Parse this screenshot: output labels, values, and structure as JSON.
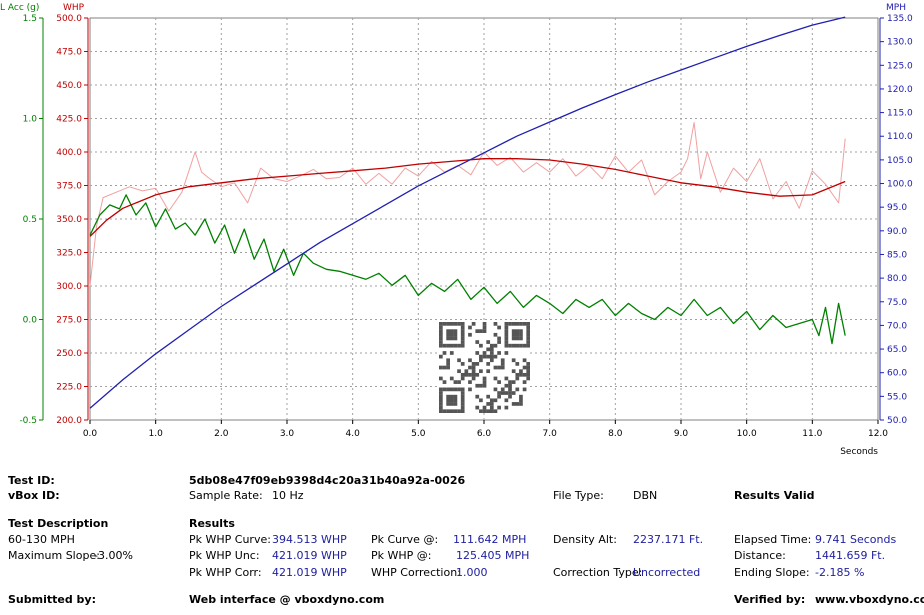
{
  "chart_data": {
    "type": "line",
    "xlabel": "Seconds",
    "xlim": [
      0,
      12
    ],
    "x_ticks": [
      "0.0",
      "1.0",
      "2.0",
      "3.0",
      "4.0",
      "5.0",
      "6.0",
      "7.0",
      "8.0",
      "9.0",
      "10.0",
      "11.0",
      "12.0"
    ],
    "axes": {
      "lacc": {
        "label": "L Acc (g)",
        "ylim": [
          -0.5,
          1.5
        ],
        "color": "#008000",
        "ticks": [
          "-0.5",
          "0.0",
          "0.5",
          "1.0",
          "1.5"
        ]
      },
      "whp": {
        "label": "WHP",
        "ylim": [
          200,
          500
        ],
        "color": "#c00000",
        "ticks": [
          "200.0",
          "225.0",
          "250.0",
          "275.0",
          "300.0",
          "325.0",
          "350.0",
          "375.0",
          "400.0",
          "425.0",
          "450.0",
          "475.0",
          "500.0"
        ]
      },
      "mph": {
        "label": "MPH",
        "ylim": [
          50,
          135
        ],
        "color": "#2020b0",
        "ticks": [
          "50.0",
          "55.0",
          "60.0",
          "65.0",
          "70.0",
          "75.0",
          "80.0",
          "85.0",
          "90.0",
          "95.0",
          "100.0",
          "105.0",
          "110.0",
          "115.0",
          "120.0",
          "125.0",
          "130.0",
          "135.0"
        ]
      }
    },
    "series": [
      {
        "axis": "mph",
        "color": "#2020b0",
        "x": [
          0,
          0.5,
          1,
          1.5,
          2,
          2.5,
          3,
          3.5,
          4,
          4.5,
          5,
          5.5,
          6,
          6.5,
          7,
          7.5,
          8,
          8.5,
          9,
          9.5,
          10,
          10.5,
          11,
          11.5
        ],
        "values": [
          52.5,
          58.5,
          64.0,
          69.0,
          74.0,
          78.5,
          83.0,
          87.5,
          91.5,
          95.5,
          99.5,
          103.0,
          106.5,
          110.0,
          113.0,
          116.0,
          118.8,
          121.5,
          124.0,
          126.5,
          129.0,
          131.3,
          133.5,
          135.2
        ]
      },
      {
        "axis": "whp",
        "color": "#c00000",
        "x": [
          0,
          0.25,
          0.5,
          1,
          1.5,
          2,
          2.5,
          3,
          3.5,
          4,
          4.5,
          5,
          5.5,
          6,
          6.5,
          7,
          7.5,
          8,
          8.5,
          9,
          9.5,
          10,
          10.5,
          11,
          11.5
        ],
        "values": [
          337,
          349,
          358,
          368,
          374,
          377,
          380,
          382,
          384,
          386,
          388,
          391,
          393,
          395,
          395,
          394,
          391,
          387,
          382,
          377,
          374,
          370,
          367,
          368,
          378
        ]
      },
      {
        "axis": "whp",
        "color": "#f0a0a0",
        "x": [
          0,
          0.1,
          0.2,
          0.4,
          0.6,
          0.8,
          1.0,
          1.2,
          1.4,
          1.6,
          1.7,
          1.8,
          2.0,
          2.2,
          2.4,
          2.6,
          2.8,
          3.0,
          3.2,
          3.4,
          3.6,
          3.8,
          4.0,
          4.2,
          4.4,
          4.6,
          4.8,
          5.0,
          5.2,
          5.4,
          5.6,
          5.8,
          6.0,
          6.2,
          6.4,
          6.6,
          6.8,
          7.0,
          7.2,
          7.4,
          7.6,
          7.8,
          8.0,
          8.2,
          8.4,
          8.6,
          8.8,
          9.0,
          9.1,
          9.2,
          9.3,
          9.4,
          9.6,
          9.8,
          10.0,
          10.2,
          10.4,
          10.6,
          10.8,
          11.0,
          11.2,
          11.4,
          11.5
        ],
        "values": [
          300,
          345,
          366,
          370,
          374,
          371,
          373,
          356,
          370,
          400,
          385,
          381,
          374,
          377,
          362,
          388,
          380,
          378,
          382,
          387,
          380,
          381,
          388,
          376,
          384,
          376,
          388,
          382,
          393,
          385,
          390,
          383,
          400,
          390,
          396,
          385,
          392,
          385,
          395,
          382,
          390,
          380,
          397,
          385,
          394,
          368,
          378,
          385,
          395,
          422,
          380,
          400,
          370,
          388,
          378,
          395,
          365,
          378,
          358,
          386,
          376,
          362,
          410
        ]
      },
      {
        "axis": "lacc",
        "color": "#008000",
        "x": [
          0,
          0.15,
          0.3,
          0.45,
          0.55,
          0.7,
          0.85,
          1.0,
          1.15,
          1.3,
          1.45,
          1.6,
          1.75,
          1.9,
          2.05,
          2.2,
          2.35,
          2.5,
          2.65,
          2.8,
          2.95,
          3.1,
          3.25,
          3.4,
          3.6,
          3.8,
          4.0,
          4.2,
          4.4,
          4.6,
          4.8,
          5.0,
          5.2,
          5.4,
          5.6,
          5.8,
          6.0,
          6.2,
          6.4,
          6.6,
          6.8,
          7.0,
          7.2,
          7.4,
          7.6,
          7.8,
          8.0,
          8.2,
          8.4,
          8.6,
          8.8,
          9.0,
          9.2,
          9.4,
          9.6,
          9.8,
          10.0,
          10.2,
          10.4,
          10.6,
          10.8,
          11.0,
          11.1,
          11.2,
          11.3,
          11.4,
          11.5
        ],
        "values": [
          0.42,
          0.52,
          0.57,
          0.55,
          0.62,
          0.52,
          0.58,
          0.46,
          0.55,
          0.45,
          0.48,
          0.42,
          0.5,
          0.38,
          0.47,
          0.33,
          0.45,
          0.3,
          0.4,
          0.24,
          0.35,
          0.22,
          0.33,
          0.28,
          0.25,
          0.24,
          0.22,
          0.2,
          0.23,
          0.17,
          0.22,
          0.12,
          0.18,
          0.14,
          0.2,
          0.1,
          0.16,
          0.08,
          0.14,
          0.06,
          0.12,
          0.08,
          0.03,
          0.1,
          0.06,
          0.1,
          0.02,
          0.08,
          0.03,
          0.0,
          0.06,
          0.02,
          0.1,
          0.02,
          0.06,
          -0.02,
          0.04,
          -0.05,
          0.02,
          -0.04,
          -0.02,
          0.0,
          -0.08,
          0.06,
          -0.12,
          0.08,
          -0.08
        ]
      }
    ]
  },
  "info": {
    "test_id_label": "Test ID:",
    "test_id_value": "5db08e47f09eb9398d4c20a31b40a92a-0026",
    "vbox_id_label": "vBox ID:",
    "sample_rate_label": "Sample Rate:",
    "sample_rate_value": "10 Hz",
    "file_type_label": "File Type:",
    "file_type_value": "DBN",
    "results_valid": "Results Valid",
    "test_desc_label": "Test Description",
    "test_desc_value": "60-130 MPH",
    "max_slope_label": "Maximum Slope:",
    "max_slope_value": "-3.00%",
    "results_label": "Results",
    "pk_whp_curve_label": "Pk WHP Curve:",
    "pk_whp_curve_value": "394.513 WHP",
    "pk_whp_unc_label": "Pk WHP Unc:",
    "pk_whp_unc_value": "421.019 WHP",
    "pk_whp_corr_label": "Pk WHP Corr:",
    "pk_whp_corr_value": "421.019 WHP",
    "pk_curve_at_label": "Pk Curve @:",
    "pk_curve_at_value": "111.642 MPH",
    "pk_whp_at_label": "Pk WHP @:",
    "pk_whp_at_value": "125.405 MPH",
    "whp_corr_label": "WHP Correction:",
    "whp_corr_value": "1.000",
    "density_alt_label": "Density Alt:",
    "density_alt_value": "2237.171 Ft.",
    "corr_type_label": "Correction Type:",
    "corr_type_value": "Uncorrected",
    "elapsed_label": "Elapsed Time:",
    "elapsed_value": "9.741 Seconds",
    "distance_label": "Distance:",
    "distance_value": "1441.659 Ft.",
    "ending_slope_label": "Ending Slope:",
    "ending_slope_value": "-2.185 %",
    "submitted_label": "Submitted by:",
    "web_interface": "Web interface @ vboxdyno.com",
    "verified_label": "Verified by:",
    "verified_value": "www.vboxdyno.com"
  }
}
